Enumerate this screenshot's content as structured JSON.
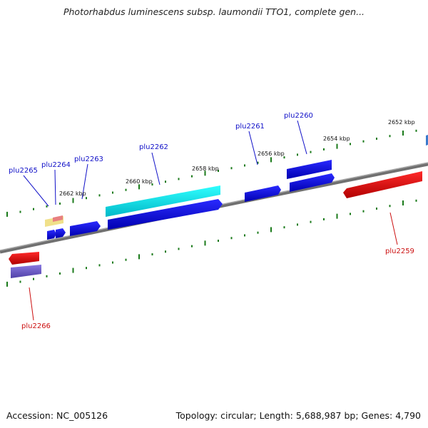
{
  "title": "Photorhabdus luminescens subsp. laumondii TTO1, complete gen...",
  "footer": {
    "accession": "Accession: NC_005126",
    "summary": "Topology: circular; Length: 5,688,987 bp; Genes: 4,790"
  },
  "scale_labels": [
    "2662 kbp",
    "2660 kbp",
    "2658 kbp",
    "2656 kbp",
    "2654 kbp",
    "2652 kbp"
  ],
  "genes_forward": [
    "plu2265",
    "plu2264",
    "plu2263",
    "plu2262",
    "plu2261",
    "plu2260"
  ],
  "genes_reverse": [
    "plu2266",
    "plu2259"
  ],
  "colors": {
    "cds_forward": "#1414e6",
    "cds_reverse": "#e61414",
    "gene_bar": "#00e6e6",
    "tick": "#1a7a1a",
    "backbone": "#7a7a7a"
  }
}
